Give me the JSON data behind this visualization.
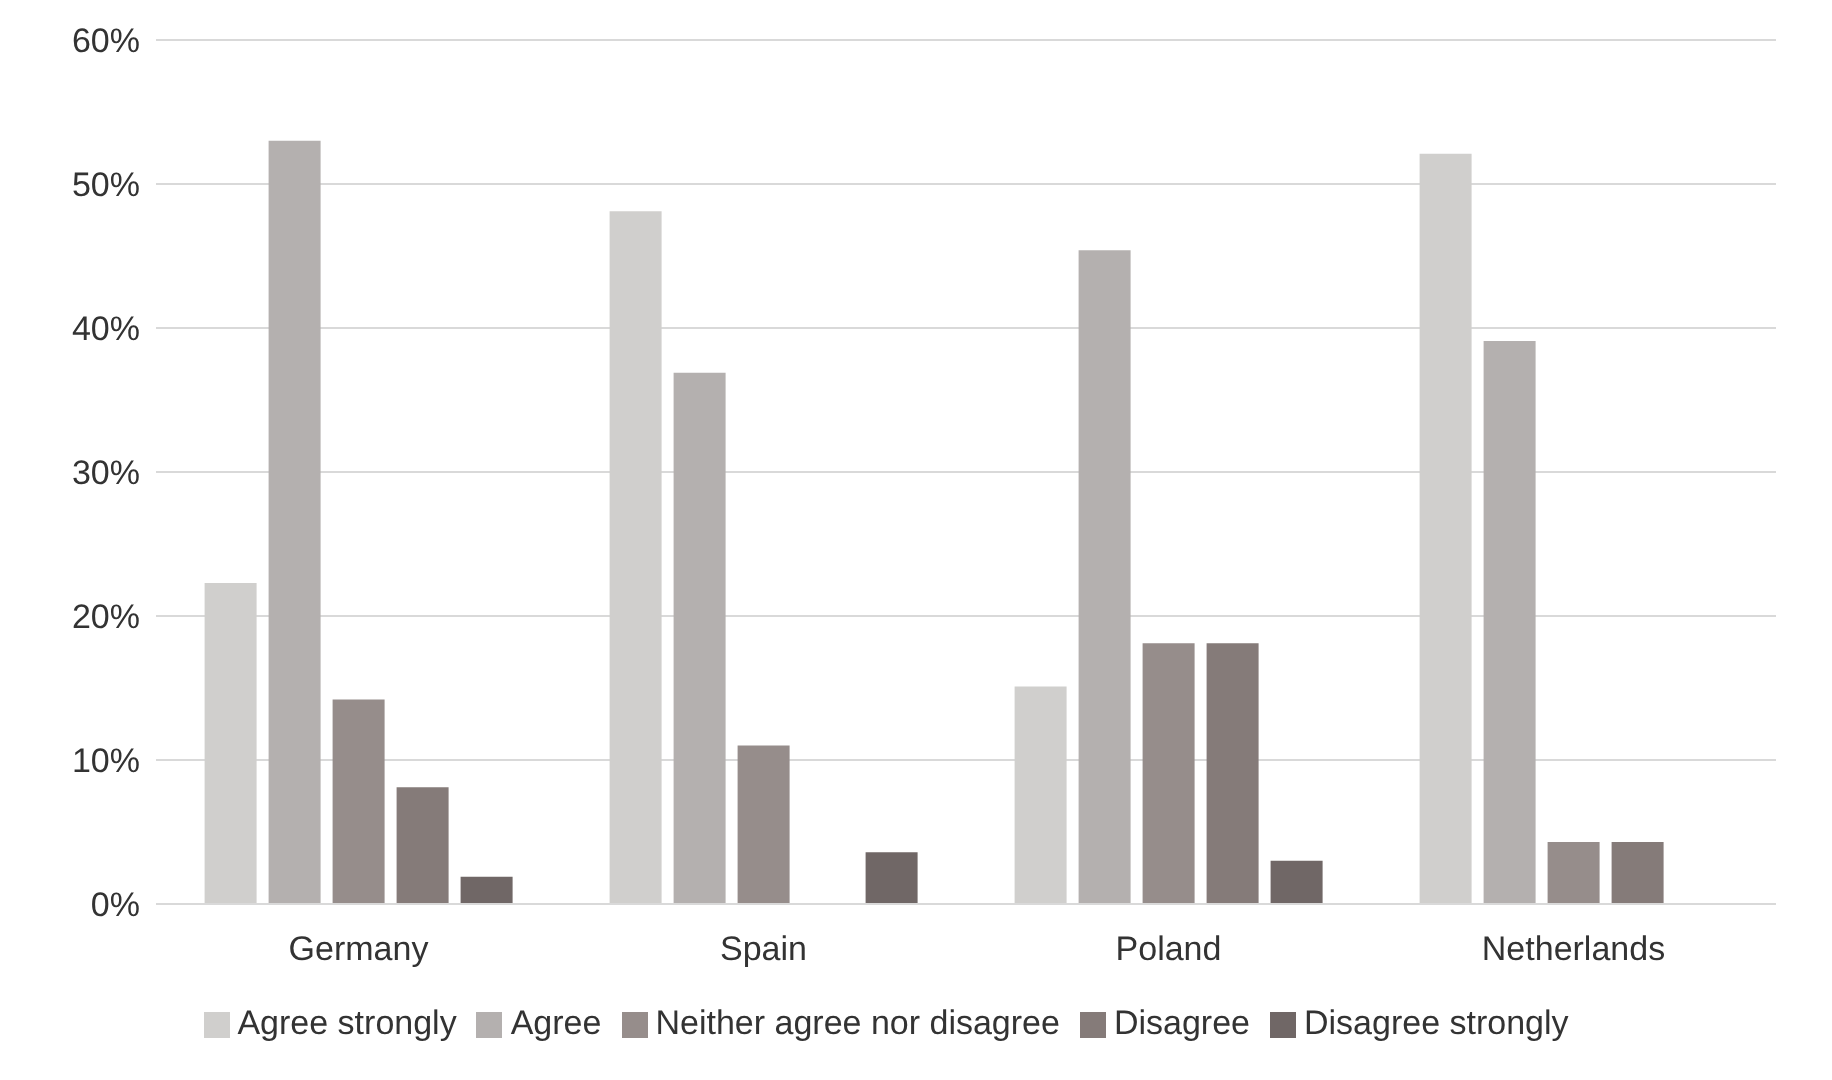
{
  "chart_data": {
    "type": "bar",
    "categories": [
      "Germany",
      "Spain",
      "Poland",
      "Netherlands"
    ],
    "series": [
      {
        "name": "Agree strongly",
        "color": "#d0cfcd",
        "values": [
          22.3,
          48.1,
          15.1,
          52.1
        ]
      },
      {
        "name": "Agree",
        "color": "#b4b0af",
        "values": [
          53.0,
          36.9,
          45.4,
          39.1
        ]
      },
      {
        "name": "Neither agree nor disagree",
        "color": "#968d8b",
        "values": [
          14.2,
          11.0,
          18.1,
          4.3
        ]
      },
      {
        "name": "Disagree",
        "color": "#857b79",
        "values": [
          8.1,
          null,
          18.1,
          4.3
        ]
      },
      {
        "name": "Disagree strongly",
        "color": "#706766",
        "values": [
          1.9,
          3.6,
          3.0,
          null
        ]
      }
    ],
    "ylim": [
      0,
      60
    ],
    "yticks": [
      {
        "value": 0,
        "label": "0%"
      },
      {
        "value": 10,
        "label": "10%"
      },
      {
        "value": 20,
        "label": "20%"
      },
      {
        "value": 30,
        "label": "30%"
      },
      {
        "value": 40,
        "label": "40%"
      },
      {
        "value": 50,
        "label": "50%"
      },
      {
        "value": 60,
        "label": "60%"
      }
    ],
    "grid": "y",
    "legend": "bottom"
  }
}
